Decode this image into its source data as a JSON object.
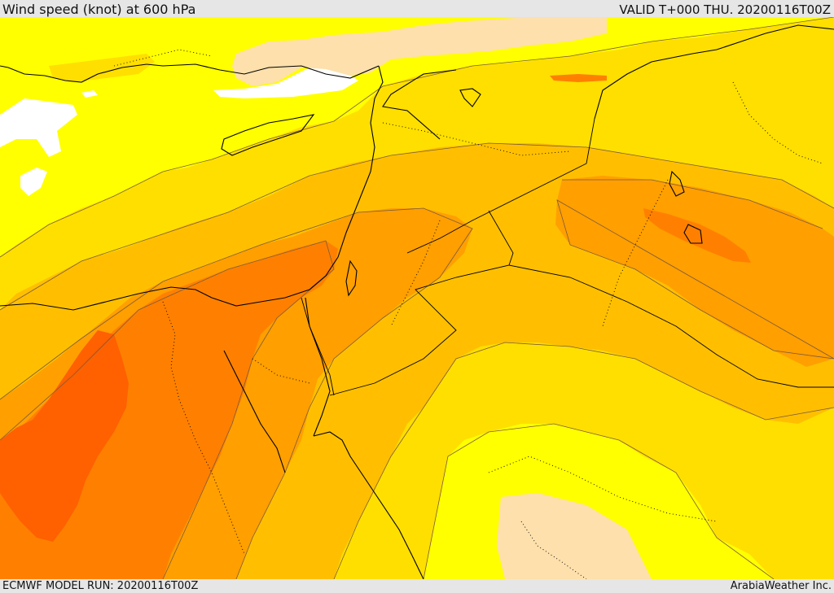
{
  "header": {
    "title": "Wind speed (knot) at 600 hPa",
    "valid": "VALID T+000 THU. 20200116T00Z"
  },
  "footer": {
    "model_run": "ECMWF MODEL RUN: 20200116T00Z",
    "credit": "ArabiaWeather Inc."
  },
  "colors": {
    "band_0": "#ffffff",
    "band_1": "#fde0ab",
    "band_2": "#ffff00",
    "band_3": "#ffdf00",
    "band_4": "#ffbf00",
    "band_5": "#ff9f00",
    "band_6": "#ff8000",
    "band_7": "#ff6000"
  }
}
